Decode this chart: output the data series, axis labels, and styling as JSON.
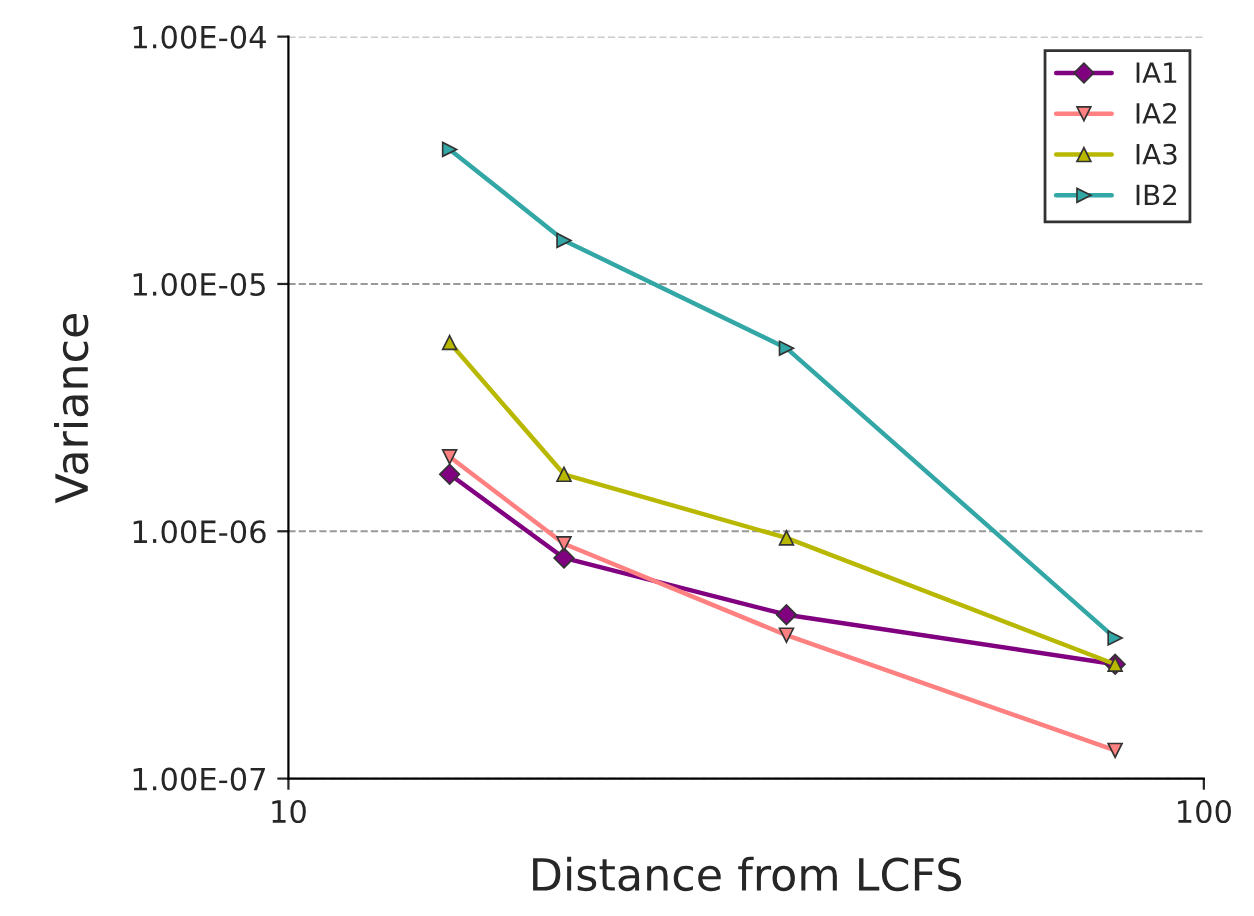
{
  "chart_data": {
    "type": "line",
    "xlabel": "Distance from LCFS",
    "ylabel": "Variance",
    "log": "xy",
    "xlim": [
      10,
      100
    ],
    "xticks": [
      10,
      100
    ],
    "ylim": [
      1e-07,
      0.0001
    ],
    "yticks": [
      {
        "value": 1e-07,
        "label": "1.00E-07"
      },
      {
        "value": 1e-06,
        "label": "1.00E-06"
      },
      {
        "value": 1e-05,
        "label": "1.00E-05"
      },
      {
        "value": 0.0001,
        "label": "1.00E-04"
      }
    ],
    "x": [
      15,
      20,
      35,
      80
    ],
    "series": [
      {
        "name": "IA1",
        "color": "#800080",
        "marker": "diamond",
        "values": [
          1.7e-06,
          7.8e-07,
          4.6e-07,
          2.9e-07
        ]
      },
      {
        "name": "IA2",
        "color": "#ff8080",
        "marker": "triangle_down",
        "values": [
          2e-06,
          8.9e-07,
          3.8e-07,
          1.3e-07
        ]
      },
      {
        "name": "IA3",
        "color": "#b8b800",
        "marker": "triangle",
        "values": [
          5.8e-06,
          1.7e-06,
          9.4e-07,
          2.9e-07
        ]
      },
      {
        "name": "IB2",
        "color": "#33a6a6",
        "marker": "triangle_right",
        "values": [
          3.5e-05,
          1.5e-05,
          5.5e-06,
          3.7e-07
        ]
      }
    ],
    "grid": "y",
    "legend": "top right"
  }
}
